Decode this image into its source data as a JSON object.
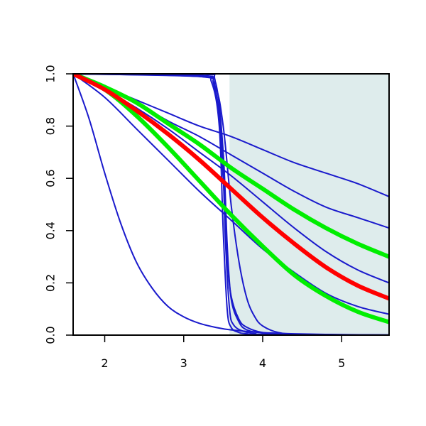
{
  "chart_data": {
    "type": "line",
    "title": "",
    "xlabel": "",
    "ylabel": "",
    "xlim": [
      1.6,
      5.6
    ],
    "ylim": [
      0.0,
      1.0
    ],
    "x_ticks": [
      2,
      3,
      4,
      5
    ],
    "y_ticks": [
      0.0,
      0.2,
      0.4,
      0.6,
      0.8,
      1.0
    ],
    "x_tick_labels": [
      "2",
      "3",
      "4",
      "5"
    ],
    "y_tick_labels": [
      "0.0",
      "0.2",
      "0.4",
      "0.6",
      "0.8",
      "1.0"
    ],
    "grid": false,
    "shaded_region": {
      "x_from": 3.58,
      "x_to": 5.6,
      "color": "#deecec"
    },
    "series": [
      {
        "color": "#ff0000",
        "width": "thick",
        "x": [
          1.6,
          2.0,
          2.4,
          2.8,
          3.2,
          3.6,
          4.0,
          4.4,
          4.8,
          5.2,
          5.6
        ],
        "y": [
          1.0,
          0.94,
          0.86,
          0.77,
          0.67,
          0.56,
          0.45,
          0.35,
          0.26,
          0.19,
          0.14
        ]
      },
      {
        "color": "#00ee00",
        "width": "thick",
        "x": [
          1.6,
          2.0,
          2.4,
          2.8,
          3.2,
          3.6,
          4.0,
          4.4,
          4.8,
          5.2,
          5.6
        ],
        "y": [
          1.0,
          0.95,
          0.89,
          0.81,
          0.73,
          0.64,
          0.56,
          0.48,
          0.41,
          0.35,
          0.3
        ]
      },
      {
        "color": "#00ee00",
        "width": "thick",
        "x": [
          1.6,
          2.0,
          2.4,
          2.8,
          3.2,
          3.6,
          4.0,
          4.4,
          4.8,
          5.2,
          5.6
        ],
        "y": [
          1.0,
          0.94,
          0.84,
          0.72,
          0.59,
          0.46,
          0.34,
          0.23,
          0.15,
          0.09,
          0.05
        ]
      },
      {
        "color": "#1a1acc",
        "width": "thin",
        "x": [
          1.6,
          2.0,
          2.4,
          2.8,
          3.2,
          3.6,
          4.0,
          4.4,
          4.8,
          5.2,
          5.6
        ],
        "y": [
          1.0,
          0.95,
          0.9,
          0.85,
          0.8,
          0.76,
          0.71,
          0.66,
          0.62,
          0.58,
          0.53
        ]
      },
      {
        "color": "#1a1acc",
        "width": "thin",
        "x": [
          1.6,
          2.0,
          2.4,
          2.8,
          3.2,
          3.6,
          4.0,
          4.4,
          4.8,
          5.2,
          5.6
        ],
        "y": [
          1.0,
          0.95,
          0.89,
          0.82,
          0.76,
          0.69,
          0.62,
          0.55,
          0.49,
          0.45,
          0.41
        ]
      },
      {
        "color": "#1a1acc",
        "width": "thin",
        "x": [
          1.6,
          2.0,
          2.4,
          2.8,
          3.2,
          3.6,
          4.0,
          4.4,
          4.8,
          5.2,
          5.6
        ],
        "y": [
          1.0,
          0.94,
          0.87,
          0.79,
          0.7,
          0.61,
          0.51,
          0.41,
          0.32,
          0.25,
          0.2
        ]
      },
      {
        "color": "#1a1acc",
        "width": "thin",
        "x": [
          1.6,
          2.0,
          2.4,
          2.8,
          3.2,
          3.6,
          4.0,
          4.4,
          4.8,
          5.2,
          5.6
        ],
        "y": [
          1.0,
          0.91,
          0.79,
          0.67,
          0.55,
          0.44,
          0.33,
          0.24,
          0.16,
          0.11,
          0.08
        ]
      },
      {
        "color": "#1a1acc",
        "width": "thin",
        "x": [
          1.6,
          1.8,
          2.0,
          2.2,
          2.4,
          2.6,
          2.8,
          3.0,
          3.2,
          3.4,
          3.6,
          4.0,
          4.4,
          5.0,
          5.6
        ],
        "y": [
          1.0,
          0.83,
          0.62,
          0.43,
          0.28,
          0.18,
          0.11,
          0.07,
          0.045,
          0.03,
          0.02,
          0.01,
          0.005,
          0.002,
          0.001
        ]
      },
      {
        "color": "#1a1acc",
        "width": "thin",
        "x": [
          1.6,
          3.2,
          3.35,
          3.45,
          3.5,
          3.55,
          3.6,
          3.7,
          3.8,
          4.0,
          5.6
        ],
        "y": [
          1.0,
          0.99,
          0.97,
          0.8,
          0.4,
          0.1,
          0.03,
          0.01,
          0.005,
          0.002,
          0.0
        ]
      },
      {
        "color": "#1a1acc",
        "width": "thin",
        "x": [
          1.6,
          3.2,
          3.38,
          3.48,
          3.53,
          3.58,
          3.63,
          3.75,
          3.9,
          4.1,
          5.6
        ],
        "y": [
          1.0,
          0.99,
          0.96,
          0.75,
          0.35,
          0.1,
          0.04,
          0.015,
          0.006,
          0.002,
          0.0
        ]
      },
      {
        "color": "#1a1acc",
        "width": "thin",
        "x": [
          1.6,
          3.2,
          3.4,
          3.5,
          3.55,
          3.6,
          3.7,
          3.8,
          4.0,
          4.3,
          5.6
        ],
        "y": [
          1.0,
          0.995,
          0.97,
          0.7,
          0.35,
          0.14,
          0.05,
          0.02,
          0.008,
          0.003,
          0.0
        ]
      },
      {
        "color": "#1a1acc",
        "width": "thin",
        "x": [
          1.6,
          3.2,
          3.4,
          3.5,
          3.55,
          3.6,
          3.7,
          3.8,
          4.0,
          4.3,
          5.6
        ],
        "y": [
          1.0,
          0.99,
          0.93,
          0.6,
          0.3,
          0.15,
          0.06,
          0.03,
          0.01,
          0.004,
          0.0
        ]
      },
      {
        "color": "#1a1acc",
        "width": "thin",
        "x": [
          1.6,
          3.2,
          3.4,
          3.5,
          3.6,
          3.7,
          3.8,
          3.9,
          4.0,
          4.2,
          4.5,
          5.6
        ],
        "y": [
          1.0,
          0.99,
          0.95,
          0.8,
          0.5,
          0.28,
          0.14,
          0.07,
          0.035,
          0.01,
          0.003,
          0.0
        ]
      }
    ]
  }
}
